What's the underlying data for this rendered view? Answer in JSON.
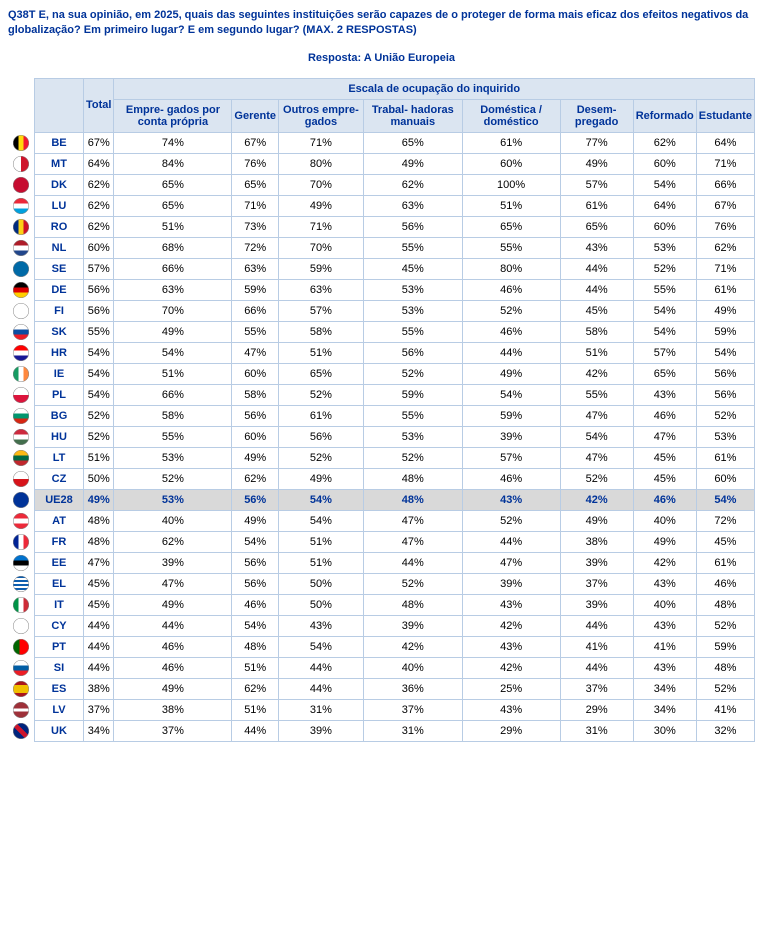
{
  "question": "Q38T E, na sua opinião, em 2025, quais das seguintes instituições serão capazes de o proteger de forma mais eficaz dos efeitos negativos da globalização? Em primeiro lugar? E em segundo lugar? (MAX. 2 RESPOSTAS)",
  "answer": "Resposta: A União Europeia",
  "group_header": "Escala de ocupação do inquirido",
  "columns": [
    "Total",
    "Empre-\ngados por conta própria",
    "Gerente",
    "Outros empre-\ngados",
    "Trabal-\nhadoras manuais",
    "Doméstica / doméstico",
    "Desem-\npregado",
    "Reformado",
    "Estudante"
  ],
  "rows": [
    {
      "code": "BE",
      "flag": "be",
      "v": [
        "67%",
        "74%",
        "67%",
        "71%",
        "65%",
        "61%",
        "77%",
        "62%",
        "64%"
      ]
    },
    {
      "code": "MT",
      "flag": "mt",
      "v": [
        "64%",
        "84%",
        "76%",
        "80%",
        "49%",
        "60%",
        "49%",
        "60%",
        "71%"
      ]
    },
    {
      "code": "DK",
      "flag": "dk",
      "v": [
        "62%",
        "65%",
        "65%",
        "70%",
        "62%",
        "100%",
        "57%",
        "54%",
        "66%"
      ]
    },
    {
      "code": "LU",
      "flag": "lu",
      "v": [
        "62%",
        "65%",
        "71%",
        "49%",
        "63%",
        "51%",
        "61%",
        "64%",
        "67%"
      ]
    },
    {
      "code": "RO",
      "flag": "ro",
      "v": [
        "62%",
        "51%",
        "73%",
        "71%",
        "56%",
        "65%",
        "65%",
        "60%",
        "76%"
      ]
    },
    {
      "code": "NL",
      "flag": "nl",
      "v": [
        "60%",
        "68%",
        "72%",
        "70%",
        "55%",
        "55%",
        "43%",
        "53%",
        "62%"
      ]
    },
    {
      "code": "SE",
      "flag": "se",
      "v": [
        "57%",
        "66%",
        "63%",
        "59%",
        "45%",
        "80%",
        "44%",
        "52%",
        "71%"
      ]
    },
    {
      "code": "DE",
      "flag": "de",
      "v": [
        "56%",
        "63%",
        "59%",
        "63%",
        "53%",
        "46%",
        "44%",
        "55%",
        "61%"
      ]
    },
    {
      "code": "FI",
      "flag": "fi",
      "v": [
        "56%",
        "70%",
        "66%",
        "57%",
        "53%",
        "52%",
        "45%",
        "54%",
        "49%"
      ]
    },
    {
      "code": "SK",
      "flag": "sk",
      "v": [
        "55%",
        "49%",
        "55%",
        "58%",
        "55%",
        "46%",
        "58%",
        "54%",
        "59%"
      ]
    },
    {
      "code": "HR",
      "flag": "hr",
      "v": [
        "54%",
        "54%",
        "47%",
        "51%",
        "56%",
        "44%",
        "51%",
        "57%",
        "54%"
      ]
    },
    {
      "code": "IE",
      "flag": "ie",
      "v": [
        "54%",
        "51%",
        "60%",
        "65%",
        "52%",
        "49%",
        "42%",
        "65%",
        "56%"
      ]
    },
    {
      "code": "PL",
      "flag": "pl",
      "v": [
        "54%",
        "66%",
        "58%",
        "52%",
        "59%",
        "54%",
        "55%",
        "43%",
        "56%"
      ]
    },
    {
      "code": "BG",
      "flag": "bg",
      "v": [
        "52%",
        "58%",
        "56%",
        "61%",
        "55%",
        "59%",
        "47%",
        "46%",
        "52%"
      ]
    },
    {
      "code": "HU",
      "flag": "hu",
      "v": [
        "52%",
        "55%",
        "60%",
        "56%",
        "53%",
        "39%",
        "54%",
        "47%",
        "53%"
      ]
    },
    {
      "code": "LT",
      "flag": "lt",
      "v": [
        "51%",
        "53%",
        "49%",
        "52%",
        "52%",
        "57%",
        "47%",
        "45%",
        "61%"
      ]
    },
    {
      "code": "CZ",
      "flag": "cz",
      "v": [
        "50%",
        "52%",
        "62%",
        "49%",
        "48%",
        "46%",
        "52%",
        "45%",
        "60%"
      ]
    },
    {
      "code": "UE28",
      "flag": "eu",
      "v": [
        "49%",
        "53%",
        "56%",
        "54%",
        "48%",
        "43%",
        "42%",
        "46%",
        "54%"
      ],
      "highlight": true
    },
    {
      "code": "AT",
      "flag": "at",
      "v": [
        "48%",
        "40%",
        "49%",
        "54%",
        "47%",
        "52%",
        "49%",
        "40%",
        "72%"
      ]
    },
    {
      "code": "FR",
      "flag": "fr",
      "v": [
        "48%",
        "62%",
        "54%",
        "51%",
        "47%",
        "44%",
        "38%",
        "49%",
        "45%"
      ]
    },
    {
      "code": "EE",
      "flag": "ee",
      "v": [
        "47%",
        "39%",
        "56%",
        "51%",
        "44%",
        "47%",
        "39%",
        "42%",
        "61%"
      ]
    },
    {
      "code": "EL",
      "flag": "el",
      "v": [
        "45%",
        "47%",
        "56%",
        "50%",
        "52%",
        "39%",
        "37%",
        "43%",
        "46%"
      ]
    },
    {
      "code": "IT",
      "flag": "it",
      "v": [
        "45%",
        "49%",
        "46%",
        "50%",
        "48%",
        "43%",
        "39%",
        "40%",
        "48%"
      ]
    },
    {
      "code": "CY",
      "flag": "cy",
      "v": [
        "44%",
        "44%",
        "54%",
        "43%",
        "39%",
        "42%",
        "44%",
        "43%",
        "52%"
      ]
    },
    {
      "code": "PT",
      "flag": "pt",
      "v": [
        "44%",
        "46%",
        "48%",
        "54%",
        "42%",
        "43%",
        "41%",
        "41%",
        "59%"
      ]
    },
    {
      "code": "SI",
      "flag": "si",
      "v": [
        "44%",
        "46%",
        "51%",
        "44%",
        "40%",
        "42%",
        "44%",
        "43%",
        "48%"
      ]
    },
    {
      "code": "ES",
      "flag": "es",
      "v": [
        "38%",
        "49%",
        "62%",
        "44%",
        "36%",
        "25%",
        "37%",
        "34%",
        "52%"
      ]
    },
    {
      "code": "LV",
      "flag": "lv",
      "v": [
        "37%",
        "38%",
        "51%",
        "31%",
        "37%",
        "43%",
        "29%",
        "34%",
        "41%"
      ]
    },
    {
      "code": "UK",
      "flag": "uk",
      "v": [
        "34%",
        "37%",
        "44%",
        "39%",
        "31%",
        "29%",
        "31%",
        "30%",
        "32%"
      ]
    }
  ],
  "flags": {
    "be": "linear-gradient(90deg,#000 33%,#FFD90C 33% 66%,#F31830 66%)",
    "mt": "linear-gradient(90deg,#fff 50%,#CF142B 50%)",
    "dk": "linear-gradient(#C60C30,#C60C30)",
    "lu": "linear-gradient(#ED2939 33%,#fff 33% 66%,#00A1DE 66%)",
    "ro": "linear-gradient(90deg,#002B7F 33%,#FCD116 33% 66%,#CE1126 66%)",
    "nl": "linear-gradient(#AE1C28 33%,#fff 33% 66%,#21468B 66%)",
    "se": "linear-gradient(#006AA7,#006AA7)",
    "de": "linear-gradient(#000 33%,#DD0000 33% 66%,#FFCE00 66%)",
    "fi": "linear-gradient(#fff,#fff)",
    "sk": "linear-gradient(#fff 33%,#0B4EA2 33% 66%,#EE1C25 66%)",
    "hr": "linear-gradient(#FF0000 33%,#fff 33% 66%,#171796 66%)",
    "ie": "linear-gradient(90deg,#169B62 33%,#fff 33% 66%,#FF883E 66%)",
    "pl": "linear-gradient(#fff 50%,#DC143C 50%)",
    "bg": "linear-gradient(#fff 33%,#00966E 33% 66%,#D62612 66%)",
    "hu": "linear-gradient(#CD2A3E 33%,#fff 33% 66%,#436F4D 66%)",
    "lt": "linear-gradient(#FDB913 33%,#006A44 33% 66%,#C1272D 66%)",
    "cz": "linear-gradient(#fff 50%,#D7141A 50%)",
    "eu": "radial-gradient(circle,#003399,#003399)",
    "at": "linear-gradient(#ED2939 33%,#fff 33% 66%,#ED2939 66%)",
    "fr": "linear-gradient(90deg,#002395 33%,#fff 33% 66%,#ED2939 66%)",
    "ee": "linear-gradient(#0072CE 33%,#000 33% 66%,#fff 66%)",
    "el": "repeating-linear-gradient(#0D5EAF 0 2px,#fff 2px 4px)",
    "it": "linear-gradient(90deg,#009246 33%,#fff 33% 66%,#CE2B37 66%)",
    "cy": "linear-gradient(#fff,#fff)",
    "pt": "linear-gradient(90deg,#006600 40%,#FF0000 40%)",
    "si": "linear-gradient(#fff 33%,#005DA4 33% 66%,#ED1C24 66%)",
    "es": "linear-gradient(#AA151B 25%,#F1BF00 25% 75%,#AA151B 75%)",
    "lv": "linear-gradient(#9E3039 40%,#fff 40% 60%,#9E3039 60%)",
    "uk": "linear-gradient(45deg,#00247D 40%,#CF142B 40% 60%,#00247D 60%)"
  }
}
